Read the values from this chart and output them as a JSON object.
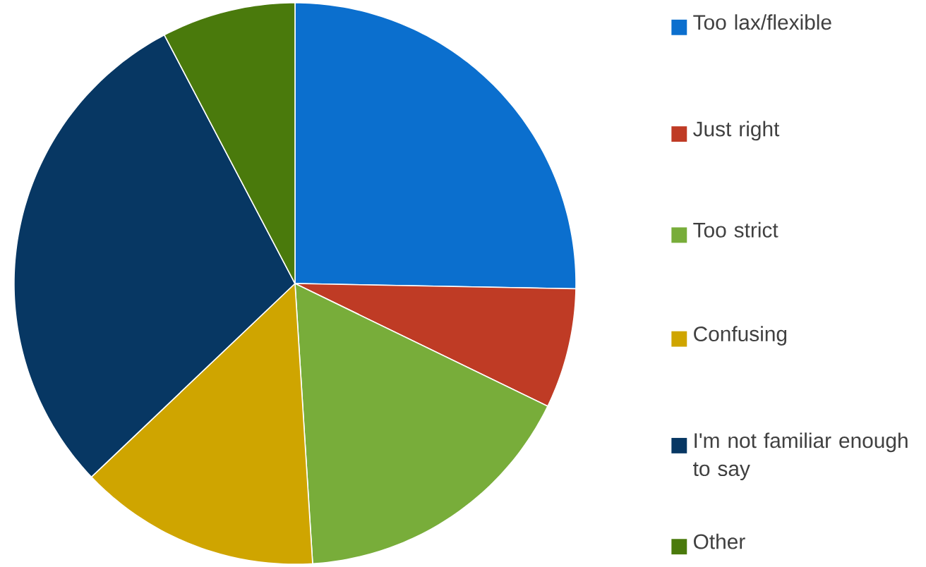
{
  "chart_data": {
    "type": "pie",
    "categories": [
      "Too lax/flexible",
      "Just right",
      "Too strict",
      "Confusing",
      "I'm not familiar enough to say",
      "Other"
    ],
    "values": [
      25.3,
      6.9,
      16.8,
      13.9,
      29.4,
      7.7
    ],
    "colors": [
      "#0b6fce",
      "#bf3b25",
      "#78ad3a",
      "#cfa500",
      "#073763",
      "#4a7a0c"
    ],
    "legend": "right"
  }
}
